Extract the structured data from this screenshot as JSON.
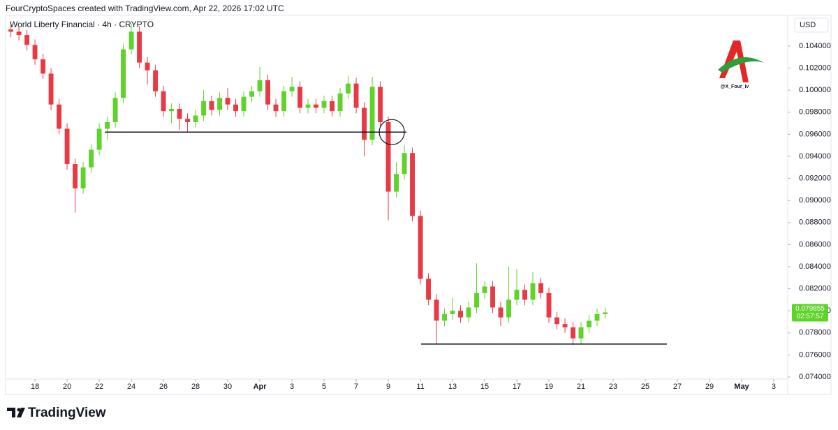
{
  "header": "FourCryptoSpaces created with TradingView.com, Apr 22, 2026 17:02 UTC",
  "brand": "TradingView",
  "watermark": "@X_Four_iv",
  "chart_data": {
    "type": "candlestick",
    "title": "World Liberty Financial · 4h · CRYPTO",
    "currency": "USD",
    "up_color": "#5ed32a",
    "down_color": "#e83a44",
    "x": [
      16.5,
      17,
      17.5,
      18,
      18.5,
      19,
      19.5,
      20,
      20.5,
      21,
      21.5,
      22,
      22.5,
      23,
      23.5,
      24,
      24.5,
      25,
      25.5,
      26,
      26.5,
      27,
      27.5,
      28,
      28.5,
      29,
      29.5,
      30,
      30.5,
      31,
      31.5,
      32,
      32.5,
      33,
      33.5,
      34,
      34.5,
      35,
      35.5,
      36,
      36.5,
      37,
      37.5,
      38,
      38.5,
      39,
      39.5,
      40,
      40.5,
      41,
      41.5,
      42,
      42.5,
      43,
      43.5,
      44,
      44.5,
      45,
      45.5,
      46,
      46.5,
      47,
      47.5,
      48,
      48.5,
      49,
      49.5,
      50,
      50.5,
      51,
      51.5,
      52,
      52.5,
      53,
      53.5
    ],
    "open": [
      0.1055,
      0.1053,
      0.105,
      0.1041,
      0.1028,
      0.1015,
      0.0987,
      0.0965,
      0.0933,
      0.0911,
      0.093,
      0.0946,
      0.0965,
      0.0971,
      0.0993,
      0.1037,
      0.1053,
      0.1025,
      0.1018,
      0.0999,
      0.0981,
      0.0983,
      0.0974,
      0.0971,
      0.0977,
      0.099,
      0.0982,
      0.0993,
      0.0987,
      0.0981,
      0.0994,
      0.0999,
      0.1009,
      0.0987,
      0.0981,
      0.0999,
      0.1003,
      0.0984,
      0.0987,
      0.0984,
      0.099,
      0.0981,
      0.0997,
      0.1006,
      0.0984,
      0.0955,
      0.1003,
      0.0971,
      0.0908,
      0.0924,
      0.0943,
      0.0886,
      0.0829,
      0.081,
      0.0791,
      0.0797,
      0.08,
      0.0794,
      0.0803,
      0.0816,
      0.0822,
      0.0803,
      0.0794,
      0.081,
      0.0819,
      0.081,
      0.0825,
      0.0816,
      0.0794,
      0.0788,
      0.0785,
      0.0775,
      0.0785,
      0.0791,
      0.0797
    ],
    "high": [
      0.106,
      0.1058,
      0.1055,
      0.1046,
      0.1033,
      0.102,
      0.0992,
      0.097,
      0.0938,
      0.0935,
      0.0951,
      0.097,
      0.0976,
      0.0998,
      0.1042,
      0.106,
      0.1058,
      0.103,
      0.1023,
      0.1004,
      0.0988,
      0.0988,
      0.0979,
      0.0982,
      0.1,
      0.0995,
      0.0998,
      0.1002,
      0.0992,
      0.0999,
      0.1004,
      0.1021,
      0.1014,
      0.0992,
      0.1004,
      0.1012,
      0.1008,
      0.0992,
      0.0992,
      0.0995,
      0.0995,
      0.1002,
      0.1013,
      0.1011,
      0.0989,
      0.1012,
      0.1008,
      0.0976,
      0.0935,
      0.095,
      0.0948,
      0.0891,
      0.0834,
      0.0815,
      0.0802,
      0.0812,
      0.0805,
      0.0808,
      0.0843,
      0.0827,
      0.0827,
      0.0808,
      0.084,
      0.0838,
      0.0824,
      0.0835,
      0.083,
      0.0821,
      0.0799,
      0.0793,
      0.079,
      0.079,
      0.0796,
      0.0802,
      0.0803
    ],
    "low": [
      0.1048,
      0.1045,
      0.1036,
      0.1023,
      0.101,
      0.0982,
      0.096,
      0.0928,
      0.0889,
      0.0906,
      0.0925,
      0.0941,
      0.0955,
      0.0966,
      0.0988,
      0.1032,
      0.102,
      0.1005,
      0.0994,
      0.0976,
      0.097,
      0.0964,
      0.0962,
      0.0966,
      0.0972,
      0.0977,
      0.0977,
      0.0982,
      0.0976,
      0.0976,
      0.0989,
      0.0994,
      0.0982,
      0.0976,
      0.0976,
      0.0994,
      0.0979,
      0.0979,
      0.0979,
      0.0979,
      0.0976,
      0.0976,
      0.0992,
      0.0979,
      0.094,
      0.095,
      0.0966,
      0.0882,
      0.0903,
      0.0919,
      0.0881,
      0.0824,
      0.0805,
      0.077,
      0.0786,
      0.0792,
      0.0789,
      0.0789,
      0.0798,
      0.0811,
      0.0798,
      0.0786,
      0.0789,
      0.0805,
      0.0805,
      0.0805,
      0.0811,
      0.0789,
      0.0783,
      0.078,
      0.0769,
      0.077,
      0.078,
      0.0786,
      0.0793
    ],
    "close": [
      0.1053,
      0.105,
      0.1041,
      0.1028,
      0.1015,
      0.0987,
      0.0965,
      0.0933,
      0.0911,
      0.093,
      0.0946,
      0.0965,
      0.0971,
      0.0993,
      0.1037,
      0.1053,
      0.1025,
      0.1018,
      0.0999,
      0.0981,
      0.0983,
      0.0974,
      0.0971,
      0.0977,
      0.099,
      0.0982,
      0.0993,
      0.0987,
      0.0981,
      0.0994,
      0.0999,
      0.1009,
      0.0987,
      0.0981,
      0.0999,
      0.1003,
      0.0984,
      0.0987,
      0.0984,
      0.099,
      0.0981,
      0.0997,
      0.1006,
      0.0984,
      0.0955,
      0.1003,
      0.0971,
      0.0908,
      0.0924,
      0.0943,
      0.0886,
      0.0829,
      0.081,
      0.0791,
      0.0797,
      0.08,
      0.0794,
      0.0803,
      0.0816,
      0.0822,
      0.0803,
      0.0794,
      0.081,
      0.0819,
      0.081,
      0.0825,
      0.0816,
      0.0794,
      0.0788,
      0.0785,
      0.0775,
      0.0785,
      0.0791,
      0.0797,
      0.079855
    ],
    "xlim": [
      16.17,
      64.87
    ],
    "xticks": [
      18,
      20,
      22,
      24,
      26,
      28,
      30,
      {
        "value": 32,
        "label": "Apr"
      },
      {
        "value": 34,
        "label": "3"
      },
      {
        "value": 36,
        "label": "5"
      },
      {
        "value": 38,
        "label": "7"
      },
      {
        "value": 40,
        "label": "9"
      },
      {
        "value": 42,
        "label": "11"
      },
      {
        "value": 44,
        "label": "13"
      },
      {
        "value": 46,
        "label": "15"
      },
      {
        "value": 48,
        "label": "17"
      },
      {
        "value": 50,
        "label": "19"
      },
      {
        "value": 52,
        "label": "21"
      },
      {
        "value": 54,
        "label": "23"
      },
      {
        "value": 56,
        "label": "25"
      },
      {
        "value": 58,
        "label": "27"
      },
      {
        "value": 60,
        "label": "29"
      },
      {
        "value": 62,
        "label": "May"
      },
      {
        "value": 64,
        "label": "3"
      }
    ],
    "ylim": [
      0.07242,
      0.10678
    ],
    "yticks": [
      {
        "value": 0.074,
        "label": "0.074000"
      },
      {
        "value": 0.076,
        "label": "0.076000"
      },
      {
        "value": 0.078,
        "label": "0.078000"
      },
      {
        "value": 0.08,
        "label": "0.080000"
      },
      {
        "value": 0.082,
        "label": "0.082000"
      },
      {
        "value": 0.084,
        "label": "0.084000"
      },
      {
        "value": 0.086,
        "label": "0.086000"
      },
      {
        "value": 0.088,
        "label": "0.088000"
      },
      {
        "value": 0.09,
        "label": "0.090000"
      },
      {
        "value": 0.092,
        "label": "0.092000"
      },
      {
        "value": 0.094,
        "label": "0.094000"
      },
      {
        "value": 0.096,
        "label": "0.096000"
      },
      {
        "value": 0.098,
        "label": "0.098000"
      },
      {
        "value": 0.1,
        "label": "0.100000"
      },
      {
        "value": 0.102,
        "label": "0.102000"
      },
      {
        "value": 0.104,
        "label": "0.104000"
      }
    ],
    "last_price": 0.079855,
    "countdown": "02:57:57",
    "hlines": [
      {
        "value": 0.0962,
        "x": [
          22.35,
          41.13
        ]
      },
      {
        "value": 0.07698,
        "x": [
          42.04,
          57.35
        ]
      }
    ],
    "circle": {
      "x": 40.22,
      "y": 0.0962
    }
  }
}
